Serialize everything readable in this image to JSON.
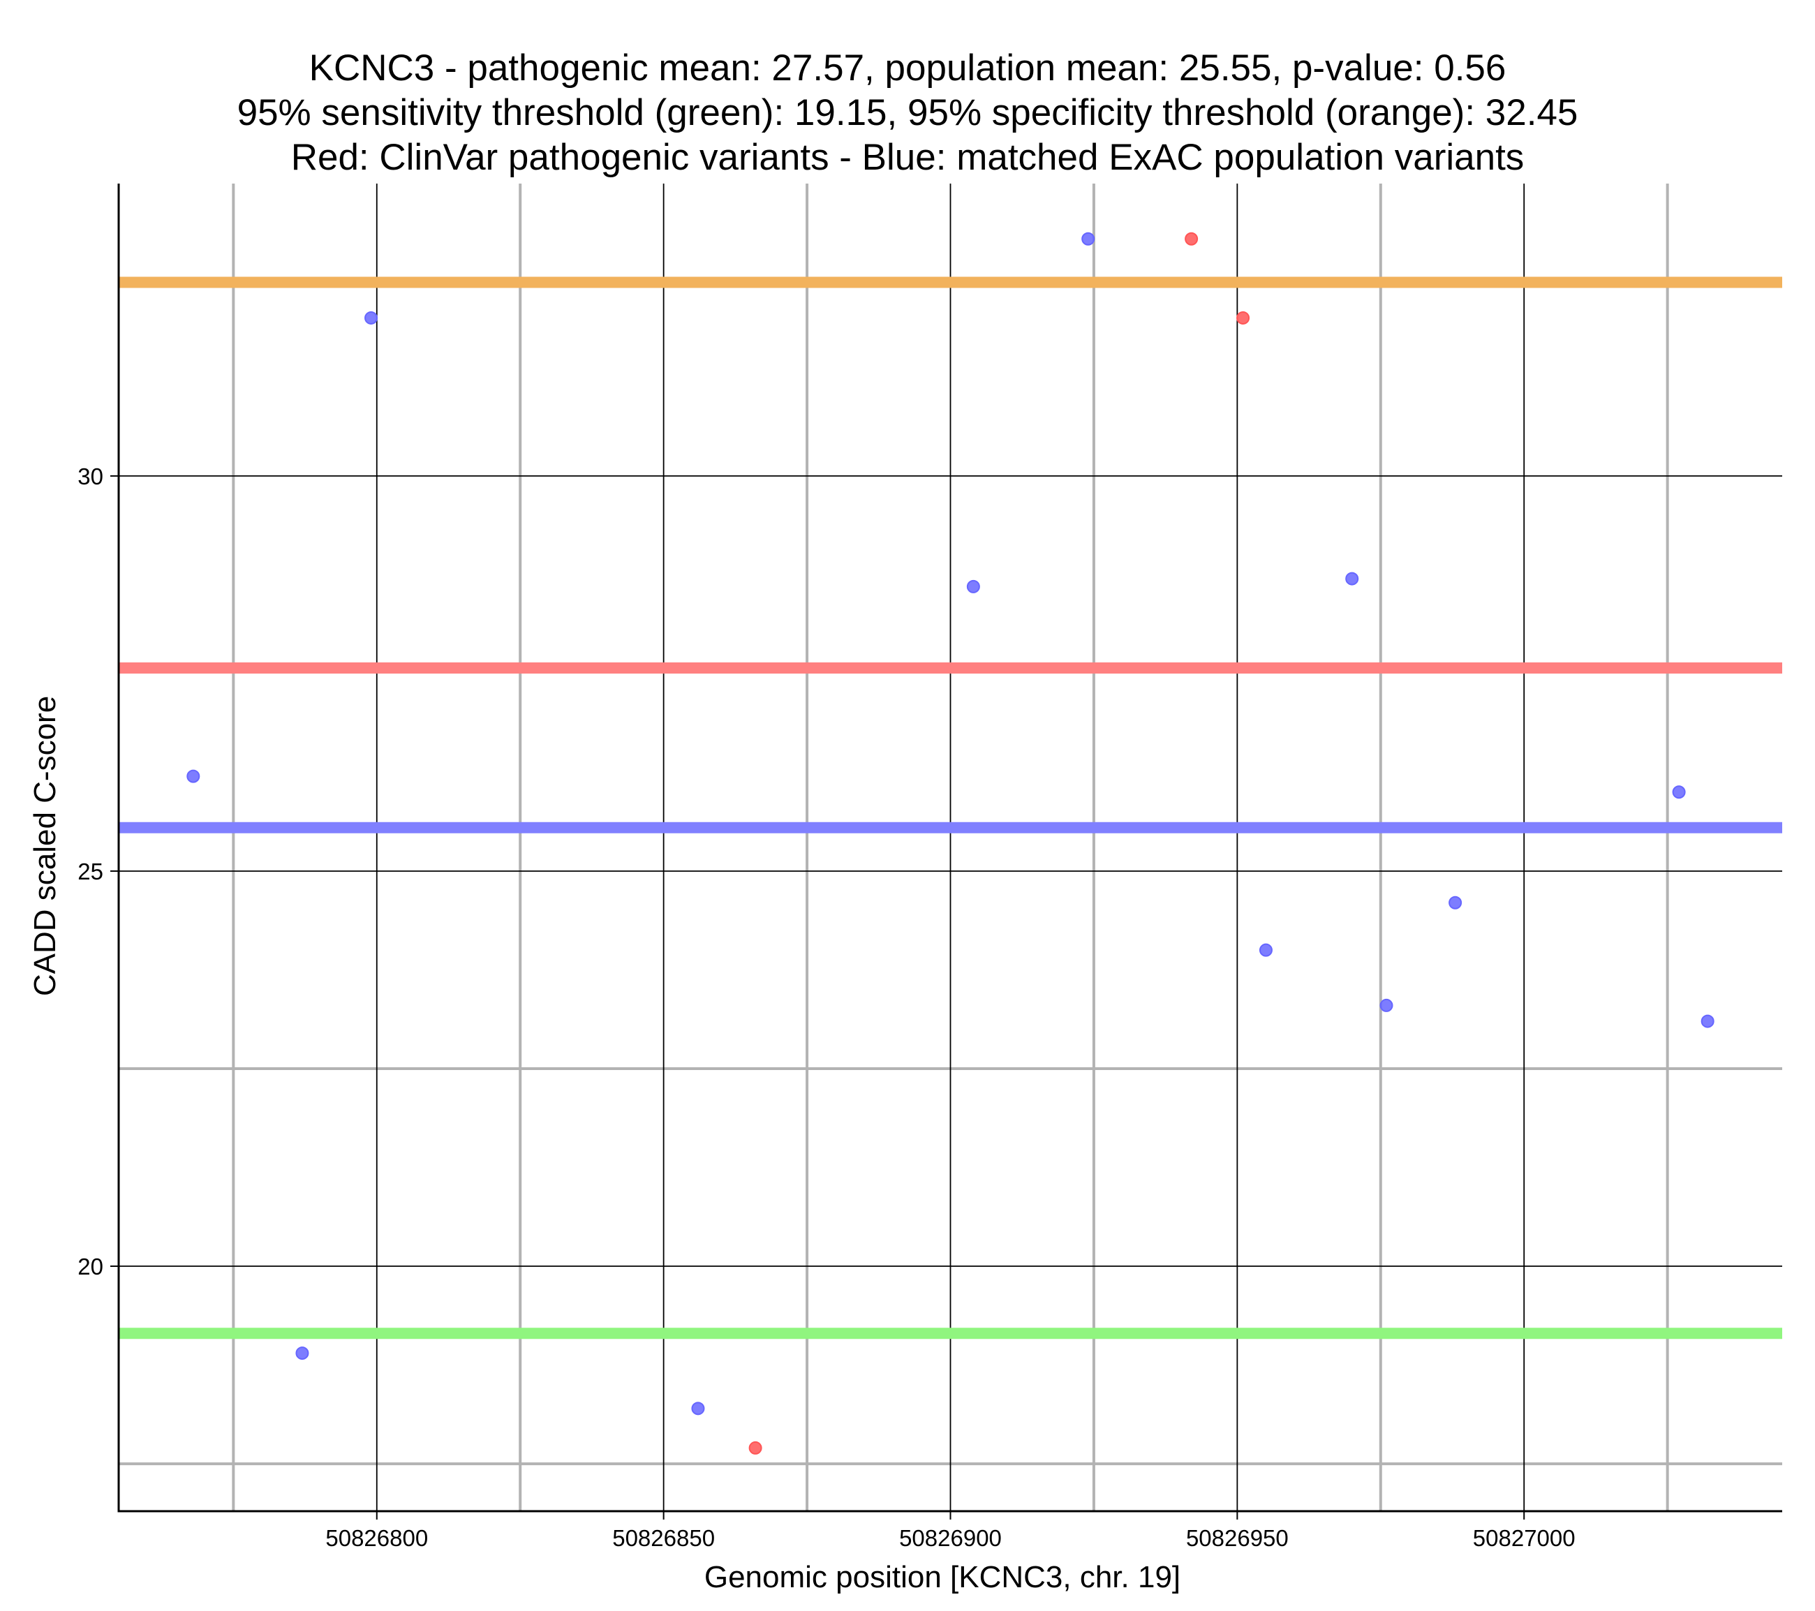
{
  "title_lines": [
    "KCNC3 - pathogenic mean: 27.57, population mean: 25.55, p-value: 0.56",
    "95% sensitivity threshold (green): 19.15, 95% specificity threshold (orange): 32.45",
    "Red: ClinVar pathogenic variants - Blue: matched ExAC population variants"
  ],
  "chart_data": {
    "type": "scatter",
    "title": "KCNC3 - pathogenic mean: 27.57, population mean: 25.55, p-value: 0.56\n95% sensitivity threshold (green): 19.15, 95% specificity threshold (orange): 32.45\nRed: ClinVar pathogenic variants - Blue: matched ExAC population variants",
    "xlabel": "Genomic position [KCNC3, chr. 19]",
    "ylabel": "CADD scaled C-score",
    "xlim": [
      50826755,
      50827045
    ],
    "ylim": [
      16.9,
      33.7
    ],
    "x_ticks": [
      50826800,
      50826850,
      50826900,
      50826950,
      50827000
    ],
    "x_tick_labels": [
      "50826800",
      "50826850",
      "50826900",
      "50826950",
      "50827000"
    ],
    "y_ticks": [
      20,
      25,
      30
    ],
    "y_tick_labels": [
      "20",
      "25",
      "30"
    ],
    "x_minor_grid": [
      50826775,
      50826825,
      50826875,
      50826925,
      50826975,
      50827025
    ],
    "y_minor_grid": [
      17.5,
      22.5,
      32.5
    ],
    "grid": true,
    "series": [
      {
        "color": "#6666ff",
        "points": [
          {
            "x": 50826768,
            "y": 26.2
          },
          {
            "x": 50826787,
            "y": 18.9
          },
          {
            "x": 50826799,
            "y": 32.0
          },
          {
            "x": 50826856,
            "y": 18.2
          },
          {
            "x": 50826904,
            "y": 28.6
          },
          {
            "x": 50826924,
            "y": 33.0
          },
          {
            "x": 50826955,
            "y": 24.0
          },
          {
            "x": 50826970,
            "y": 28.7
          },
          {
            "x": 50826976,
            "y": 23.3
          },
          {
            "x": 50826988,
            "y": 24.6
          },
          {
            "x": 50827027,
            "y": 26.0
          },
          {
            "x": 50827032,
            "y": 23.1
          }
        ]
      },
      {
        "color": "#ff5555",
        "points": [
          {
            "x": 50826866,
            "y": 17.7
          },
          {
            "x": 50826942,
            "y": 33.0
          },
          {
            "x": 50826951,
            "y": 32.0
          }
        ]
      }
    ],
    "reference_lines": [
      {
        "y": 32.45,
        "color": "#f2b25c"
      },
      {
        "y": 27.57,
        "color": "#ff8080"
      },
      {
        "y": 25.55,
        "color": "#8080ff"
      },
      {
        "y": 19.15,
        "color": "#90f57f"
      }
    ]
  }
}
